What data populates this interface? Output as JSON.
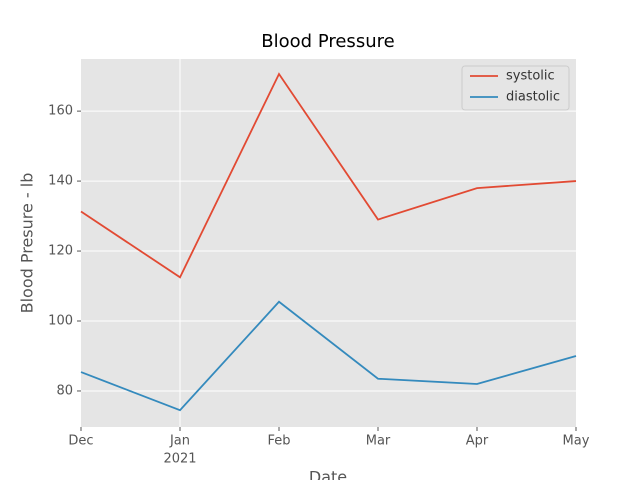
{
  "chart_data": {
    "type": "line",
    "title": "Blood Pressure",
    "x_label": "Date",
    "y_label": "Blood Presure - lb",
    "categories": [
      "Dec",
      "Jan",
      "Feb",
      "Mar",
      "Apr",
      "May"
    ],
    "year_label": "2021",
    "series": [
      {
        "name": "systolic",
        "color": "#E24A33",
        "values": [
          131.3,
          112.5,
          170.6,
          129.0,
          138.0,
          140.0
        ]
      },
      {
        "name": "diastolic",
        "color": "#348ABD",
        "values": [
          85.4,
          74.5,
          105.5,
          83.5,
          82.0,
          90.0
        ]
      }
    ],
    "ylim": [
      69.7,
      174.9
    ],
    "yticks": [
      80,
      100,
      120,
      140,
      160
    ],
    "grid": true,
    "legend": "upper right"
  }
}
